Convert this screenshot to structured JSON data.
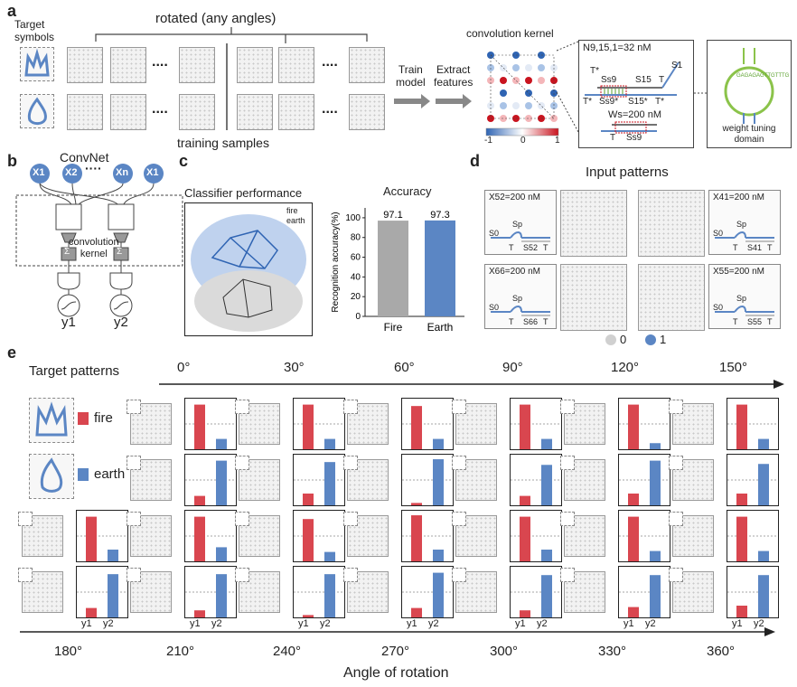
{
  "labels": {
    "a": "a",
    "b": "b",
    "c": "c",
    "d": "d",
    "e": "e"
  },
  "panel_a": {
    "target_symbols": "Target\nsymbols",
    "rotated": "rotated (any angles)",
    "training_samples": "training samples",
    "ellipsis": "....",
    "train_model": "Train\nmodel",
    "extract_features": "Extract\nfeatures",
    "conv_kernel": "convolution kernel",
    "colorbar_ticks": [
      "-1",
      "0",
      "1"
    ],
    "n_label": "N9,15,1=32 nM",
    "strand_labels": [
      "T*",
      "Ss9",
      "S15",
      "T",
      "S1",
      "T*",
      "Ss9*",
      "S15*",
      "T*"
    ],
    "w_label": "Ws=200 nM",
    "w_strand": [
      "T",
      "Ss9"
    ],
    "hairpin_seq": "GAGAGAGTTGTTTG",
    "weight_tuning": "weight tuning\ndomain"
  },
  "panel_b": {
    "title": "ConvNet",
    "inputs": [
      "X1",
      "X2",
      "Xn",
      "X1"
    ],
    "conv_label": "convolution\nkernel",
    "sum": "Σ",
    "outputs": [
      "y1",
      "y2"
    ]
  },
  "panel_c": {
    "title_left": "Classifier performance",
    "legend": [
      "fire",
      "earth"
    ],
    "title_right": "Accuracy",
    "chart_data": {
      "type": "bar",
      "categories": [
        "Fire",
        "Earth"
      ],
      "values": [
        97.1,
        97.3
      ],
      "ylabel": "Recognition accuracy(%)",
      "yticks": [
        0,
        20,
        40,
        60,
        80,
        100
      ],
      "ylim": [
        0,
        110
      ],
      "colors": [
        "#a9a9a9",
        "#5b86c4"
      ]
    }
  },
  "panel_d": {
    "title": "Input patterns",
    "conc": [
      "X52=200 nM",
      "X41=200 nM",
      "X66=200 nM",
      "X55=200 nM"
    ],
    "strands": [
      [
        "S0",
        "Sp",
        "T",
        "S52",
        "T"
      ],
      [
        "S0",
        "Sp",
        "T",
        "S41",
        "T"
      ],
      [
        "S0",
        "Sp",
        "T",
        "S66",
        "T"
      ],
      [
        "S0",
        "Sp",
        "T",
        "S55",
        "T"
      ]
    ],
    "legend": [
      "0",
      "1"
    ]
  },
  "panel_e": {
    "target_patterns": "Target patterns",
    "classes": [
      "fire",
      "earth"
    ],
    "class_colors": [
      "#d9464f",
      "#5b86c4"
    ],
    "top_angles": [
      "0°",
      "30°",
      "60°",
      "90°",
      "120°",
      "150°"
    ],
    "bottom_angles": [
      "180°",
      "210°",
      "240°",
      "270°",
      "300°",
      "330°",
      "360°"
    ],
    "axis_label": "Angle of rotation",
    "y1": "y1",
    "y2": "y2",
    "rows": [
      [
        [
          0.95,
          0.22
        ],
        [
          0.95,
          0.22
        ],
        [
          0.92,
          0.22
        ],
        [
          0.95,
          0.22
        ],
        [
          0.95,
          0.13
        ],
        [
          0.95,
          0.22
        ]
      ],
      [
        [
          0.2,
          0.95
        ],
        [
          0.25,
          0.92
        ],
        [
          0.05,
          0.98
        ],
        [
          0.2,
          0.86
        ],
        [
          0.25,
          0.95
        ],
        [
          0.25,
          0.88
        ]
      ],
      [
        [
          0.95,
          0.25
        ],
        [
          0.95,
          0.3
        ],
        [
          0.9,
          0.2
        ],
        [
          0.98,
          0.25
        ],
        [
          0.95,
          0.25
        ],
        [
          0.95,
          0.22
        ],
        [
          0.95,
          0.22
        ]
      ],
      [
        [
          0.2,
          0.92
        ],
        [
          0.15,
          0.92
        ],
        [
          0.05,
          0.92
        ],
        [
          0.2,
          0.95
        ],
        [
          0.15,
          0.9
        ],
        [
          0.22,
          0.9
        ],
        [
          0.25,
          0.9
        ]
      ]
    ]
  }
}
